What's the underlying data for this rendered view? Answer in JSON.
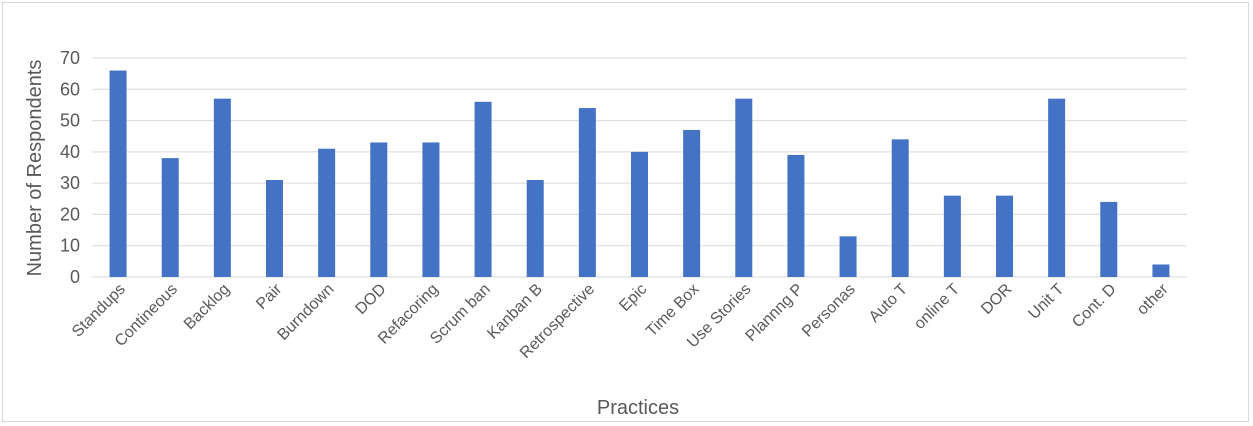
{
  "chart_data": {
    "type": "bar",
    "title": "",
    "xlabel": "Practices",
    "ylabel": "Number of Respondents",
    "ylim": [
      0,
      70
    ],
    "yticks": [
      0,
      10,
      20,
      30,
      40,
      50,
      60,
      70
    ],
    "grid": true,
    "legend": "none",
    "categories": [
      "Standups",
      "Contineous",
      "Backlog",
      "Pair",
      "Burndown",
      "DOD",
      "Refacoring",
      "Scrum ban",
      "Kanban B",
      "Retrospective",
      "Epic",
      "Time Box",
      "Use Stories",
      "Plannng P",
      "Personas",
      "Auto T",
      "online T",
      "DOR",
      "Unit T",
      "Cont. D",
      "other"
    ],
    "series": [
      {
        "values": [
          66,
          38,
          57,
          31,
          41,
          43,
          43,
          56,
          31,
          54,
          40,
          47,
          57,
          39,
          13,
          44,
          26,
          26,
          57,
          24,
          4
        ]
      }
    ],
    "colors": {
      "bar": "#4472c4",
      "grid": "#d9d9d9",
      "text": "#595959"
    }
  }
}
